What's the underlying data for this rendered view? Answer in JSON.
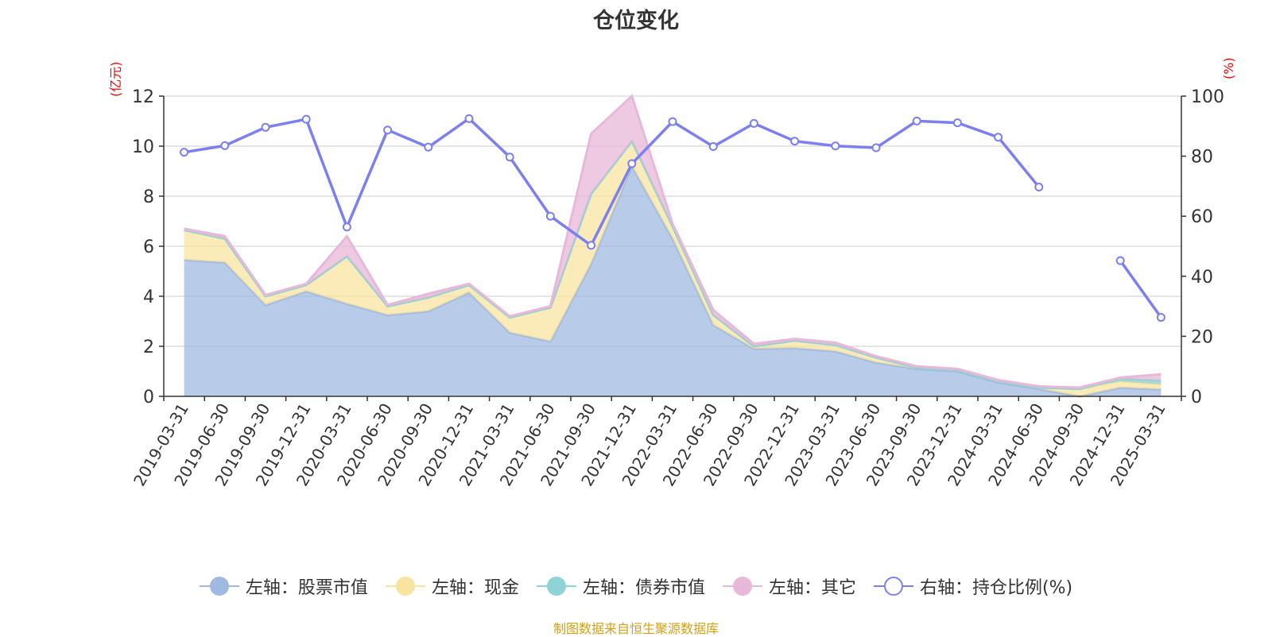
{
  "chart_data": {
    "type": "area",
    "title": "仓位变化",
    "left_axis_unit": "(亿元)",
    "right_axis_unit": "(%)",
    "categories": [
      "2019-03-31",
      "2019-06-30",
      "2019-09-30",
      "2019-12-31",
      "2020-03-31",
      "2020-06-30",
      "2020-09-30",
      "2020-12-31",
      "2021-03-31",
      "2021-06-30",
      "2021-09-30",
      "2021-12-31",
      "2022-03-31",
      "2022-06-30",
      "2022-09-30",
      "2022-12-31",
      "2023-03-31",
      "2023-06-30",
      "2023-09-30",
      "2023-12-31",
      "2024-03-31",
      "2024-06-30",
      "2024-09-30",
      "2024-12-31",
      "2025-03-31"
    ],
    "ylim_left": [
      0,
      12
    ],
    "yticks_left": [
      0,
      2,
      4,
      6,
      8,
      10,
      12
    ],
    "ylim_right": [
      0,
      100
    ],
    "yticks_right": [
      0,
      20,
      40,
      60,
      80,
      100
    ],
    "grid": true,
    "legend_position": "bottom",
    "series": [
      {
        "name": "左轴：股票市值",
        "axis": "left",
        "stack": "total",
        "color": "#a0b9e0",
        "values": [
          5.45,
          5.35,
          3.65,
          4.2,
          3.7,
          3.25,
          3.4,
          4.15,
          2.55,
          2.2,
          5.3,
          9.2,
          6.3,
          2.85,
          1.9,
          1.93,
          1.8,
          1.35,
          1.1,
          1.0,
          0.55,
          0.3,
          null,
          0.35,
          0.28
        ]
      },
      {
        "name": "左轴：现金",
        "axis": "left",
        "stack": "total",
        "color": "#f8e4a0",
        "values": [
          1.2,
          0.95,
          0.35,
          0.25,
          1.9,
          0.35,
          0.55,
          0.3,
          0.6,
          1.35,
          2.8,
          1.0,
          0.5,
          0.4,
          0.1,
          0.3,
          0.25,
          0.2,
          0.05,
          0.05,
          0.05,
          0.05,
          0.3,
          0.25,
          0.2
        ]
      },
      {
        "name": "左轴：债券市值",
        "axis": "left",
        "stack": "total",
        "color": "#8fd3d6",
        "values": [
          0,
          0,
          0,
          0,
          0,
          0,
          0,
          0,
          0,
          0,
          0,
          0,
          0,
          0,
          0,
          0,
          0,
          0,
          0,
          0,
          0,
          0,
          0,
          0.1,
          0.15
        ]
      },
      {
        "name": "左轴：其它",
        "axis": "left",
        "stack": "total",
        "color": "#e8b8d8",
        "values": [
          0.05,
          0.1,
          0.05,
          0.05,
          0.8,
          0.05,
          0.15,
          0.05,
          0.05,
          0.05,
          2.4,
          1.8,
          0.1,
          0.2,
          0.1,
          0.07,
          0.1,
          0.05,
          0.05,
          0.05,
          0.05,
          0.05,
          0.05,
          0.05,
          0.25
        ]
      },
      {
        "name": "右轴：持仓比例(%)",
        "axis": "right",
        "type": "line",
        "color": "#7b7ff0",
        "values": [
          81.3,
          83.5,
          89.6,
          92.3,
          56.4,
          88.7,
          83,
          92.5,
          79.7,
          60,
          50.3,
          77.5,
          91.5,
          83.2,
          90.9,
          85,
          83.4,
          82.8,
          91.7,
          91.1,
          86.3,
          69.7,
          null,
          45.2,
          26.3
        ]
      }
    ]
  },
  "footer": "制图数据来自恒生聚源数据库"
}
